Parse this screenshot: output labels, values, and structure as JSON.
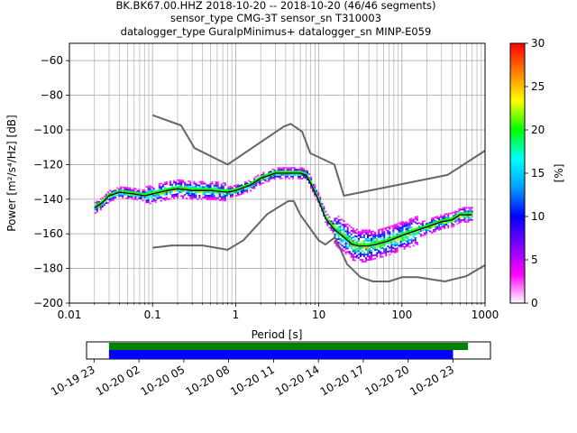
{
  "title_lines": [
    "BK.BK67.00.HHZ   2018-10-20 -- 2018-10-20  (46/46 segments)",
    "sensor_type CMG-3T sensor_sn T310003",
    "datalogger_type GuralpMinimus+ datalogger_sn MINP-E059"
  ],
  "chart_data": {
    "type": "line",
    "title": "BK.BK67.00.HHZ   2018-10-20 -- 2018-10-20  (46/46 segments)",
    "xlabel": "Period [s]",
    "ylabel": "Power [m²/s⁴/Hz] [dB]",
    "xscale": "log",
    "xlim": [
      0.01,
      1000
    ],
    "ylim": [
      -200,
      -50
    ],
    "x_ticks": [
      0.01,
      0.1,
      1,
      10,
      100,
      1000
    ],
    "x_tick_labels": [
      "0.01",
      "0.1",
      "1",
      "10",
      "100",
      "1000"
    ],
    "y_ticks": [
      -200,
      -180,
      -160,
      -140,
      -120,
      -100,
      -80,
      -60
    ],
    "y_tick_labels": [
      "−200",
      "−180",
      "−160",
      "−140",
      "−120",
      "−100",
      "−80",
      "−60"
    ],
    "grid": true,
    "series": [
      {
        "name": "",
        "role": "high-noise-model",
        "color": "#666666",
        "x": [
          0.1,
          0.22,
          0.32,
          0.8,
          3.8,
          4.6,
          6.3,
          7.9,
          15.4,
          20,
          354.8,
          1000
        ],
        "y": [
          -91.5,
          -97.4,
          -110.5,
          -120,
          -98,
          -96.5,
          -101,
          -113.5,
          -120,
          -138,
          -126,
          -112
        ]
      },
      {
        "name": "",
        "role": "low-noise-model",
        "color": "#666666",
        "x": [
          0.1,
          0.17,
          0.4,
          0.8,
          1.24,
          2.4,
          4.3,
          5,
          6,
          10,
          12,
          15.6,
          21.9,
          31.6,
          45,
          70,
          101,
          154,
          328,
          600,
          1000
        ],
        "y": [
          -168,
          -166.7,
          -166.7,
          -169.2,
          -163.7,
          -148.6,
          -141.1,
          -141.1,
          -149,
          -163.8,
          -166.2,
          -162.1,
          -177.5,
          -185,
          -187.5,
          -187.5,
          -185,
          -185,
          -187.5,
          -184.4,
          -178
        ]
      },
      {
        "name": "",
        "role": "mean",
        "color": "#00ff00",
        "x": [
          0.02,
          0.025,
          0.03,
          0.04,
          0.06,
          0.08,
          0.1,
          0.15,
          0.2,
          0.3,
          0.5,
          0.8,
          1,
          1.5,
          2,
          3,
          4,
          5,
          6,
          7,
          8,
          10,
          12,
          15,
          20,
          25,
          30,
          40,
          50,
          70,
          100,
          150,
          200,
          300,
          400,
          500,
          700
        ],
        "y": [
          -144,
          -141,
          -137,
          -135,
          -136,
          -137,
          -136,
          -134,
          -133,
          -134,
          -134,
          -135,
          -134,
          -131,
          -127,
          -124,
          -124,
          -124,
          -124,
          -125,
          -130,
          -140,
          -150,
          -156,
          -161,
          -165,
          -166,
          -166,
          -165,
          -163,
          -160,
          -157,
          -155,
          -152,
          -151,
          -148,
          -148
        ]
      },
      {
        "name": "",
        "role": "median",
        "color": "#000000",
        "x": [
          0.02,
          0.025,
          0.03,
          0.04,
          0.06,
          0.08,
          0.1,
          0.15,
          0.2,
          0.3,
          0.5,
          0.8,
          1,
          1.5,
          2,
          3,
          4,
          5,
          6,
          7,
          8,
          10,
          12,
          15,
          20,
          25,
          30,
          40,
          50,
          70,
          100,
          150,
          200,
          300,
          400,
          500,
          700
        ],
        "y": [
          -145,
          -142,
          -138,
          -136,
          -137,
          -138,
          -137,
          -135,
          -134,
          -135,
          -135,
          -136,
          -135,
          -132,
          -128,
          -125,
          -125,
          -125,
          -125,
          -126,
          -131,
          -141,
          -151,
          -157,
          -162,
          -166,
          -167,
          -167,
          -166,
          -164,
          -161,
          -158,
          -156,
          -153,
          -152,
          -149,
          -149
        ]
      }
    ],
    "colorbar": {
      "label": "[%]",
      "ticks": [
        0,
        5,
        10,
        15,
        20,
        25,
        30
      ],
      "tick_labels": [
        "0",
        "5",
        "10",
        "15",
        "20",
        "25",
        "30"
      ],
      "range": [
        0,
        30
      ],
      "colormap": [
        "#ffffff",
        "#ff00ff",
        "#7f00ff",
        "#0000ff",
        "#00a0ff",
        "#00ffff",
        "#00ff00",
        "#ffff00",
        "#ff8000",
        "#ff0000"
      ]
    },
    "coverage": {
      "tick_labels": [
        "10-19 23",
        "10-20 02",
        "10-20 05",
        "10-20 08",
        "10-20 11",
        "10-20 14",
        "10-20 17",
        "10-20 20",
        "10-20 23"
      ],
      "tick_hours": [
        -1,
        2,
        5,
        8,
        11,
        14,
        17,
        20,
        23
      ],
      "xlim_hours": [
        -1.5,
        25.5
      ],
      "bars": [
        {
          "color": "#008000",
          "start_hours": 0,
          "end_hours": 24.0
        },
        {
          "color": "#0000ff",
          "start_hours": 0,
          "end_hours": 23.0
        }
      ]
    }
  }
}
